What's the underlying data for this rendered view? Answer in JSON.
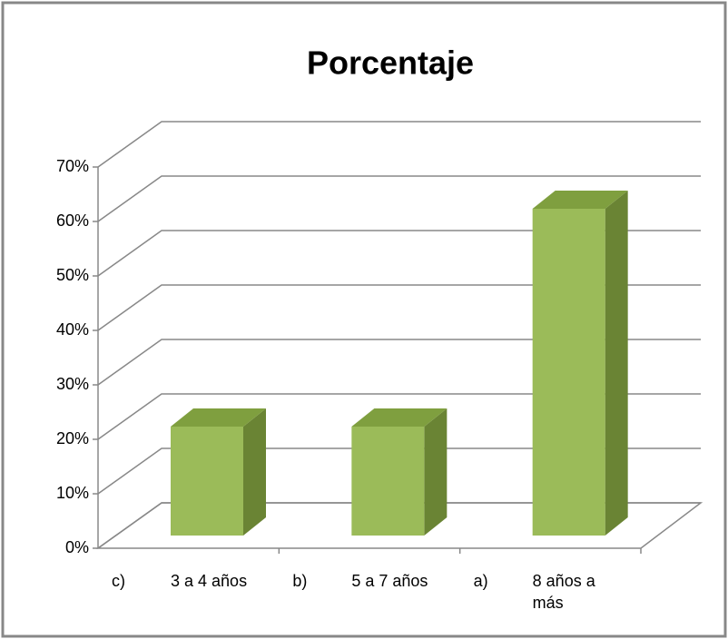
{
  "chart_data": {
    "type": "bar3d",
    "title": "Porcentaje",
    "category_prefixes": [
      "c)",
      "b)",
      "a)"
    ],
    "categories": [
      "3 a 4 años",
      "5 a 7 años",
      "8 años a más"
    ],
    "values": [
      20,
      20,
      60
    ],
    "color": "#9bbb59",
    "ylim": [
      0,
      70
    ],
    "yticks": [
      {
        "value": 0,
        "label": "0%"
      },
      {
        "value": 10,
        "label": "10%"
      },
      {
        "value": 20,
        "label": "20%"
      },
      {
        "value": 30,
        "label": "30%"
      },
      {
        "value": 40,
        "label": "40%"
      },
      {
        "value": 50,
        "label": "50%"
      },
      {
        "value": 60,
        "label": "60%"
      },
      {
        "value": 70,
        "label": "70%"
      }
    ],
    "grid": true
  }
}
